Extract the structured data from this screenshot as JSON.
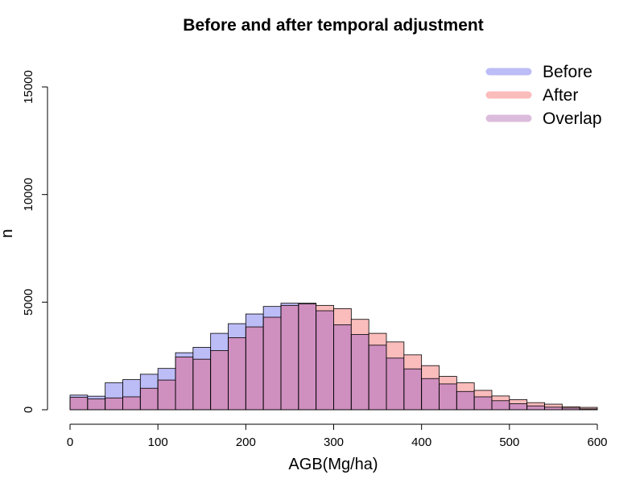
{
  "chart_data": {
    "type": "histogram",
    "title": "Before and after temporal adjustment",
    "xlabel": "AGB(Mg/ha)",
    "ylabel": "n",
    "xlim": [
      0,
      600
    ],
    "ylim": [
      0,
      15000
    ],
    "x_ticks": [
      0,
      100,
      200,
      300,
      400,
      500,
      600
    ],
    "y_ticks": [
      0,
      5000,
      10000,
      15000
    ],
    "bin_width": 20,
    "bin_edges": [
      0,
      20,
      40,
      60,
      80,
      100,
      120,
      140,
      160,
      180,
      200,
      220,
      240,
      260,
      280,
      300,
      320,
      340,
      360,
      380,
      400,
      420,
      440,
      460,
      480,
      500,
      520,
      540,
      560,
      580,
      600
    ],
    "grid": false,
    "legend_position": "top-right",
    "colors": {
      "before": "#bcbcf7",
      "after": "#fbbcbc",
      "overlap": "#cf8fbf",
      "overlap_legend": "#dcbcdc",
      "outline": "#000000"
    },
    "series": [
      {
        "name": "Before",
        "values": [
          680,
          630,
          1250,
          1400,
          1650,
          1920,
          2650,
          2900,
          3550,
          4000,
          4450,
          4800,
          4950,
          4920,
          4600,
          3950,
          3500,
          3000,
          2400,
          1900,
          1450,
          1200,
          850,
          600,
          420,
          280,
          180,
          120,
          80,
          40
        ]
      },
      {
        "name": "After",
        "values": [
          580,
          500,
          550,
          600,
          1000,
          1380,
          2450,
          2350,
          2750,
          3350,
          3850,
          4300,
          4850,
          4950,
          4850,
          4700,
          4200,
          3550,
          3150,
          2550,
          2050,
          1550,
          1250,
          900,
          640,
          470,
          330,
          260,
          140,
          110
        ]
      }
    ],
    "legend": [
      {
        "label": "Before",
        "key": "before"
      },
      {
        "label": "After",
        "key": "after"
      },
      {
        "label": "Overlap",
        "key": "overlap_legend"
      }
    ]
  }
}
